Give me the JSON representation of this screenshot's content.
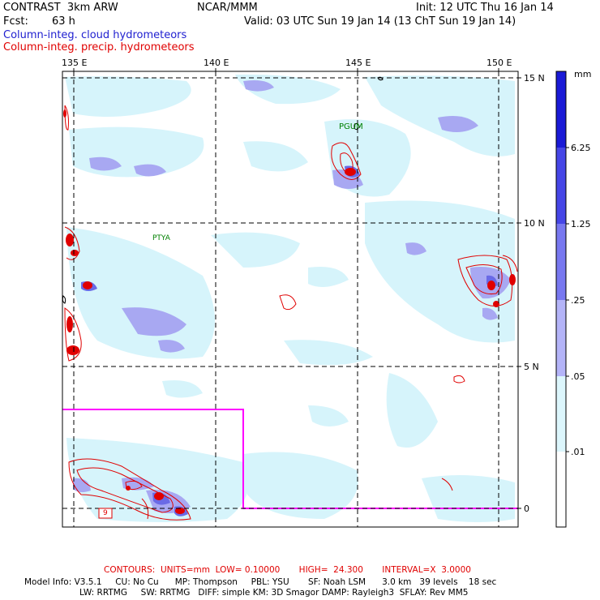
{
  "header": {
    "title": "CONTRAST  3km ARW",
    "center": "NCAR/MMM",
    "init": "Init: 12 UTC Thu 16 Jan 14",
    "fcst_label": "Fcst:",
    "fcst_value": "63 h",
    "valid": "Valid: 03 UTC Sun 19 Jan 14 (13 ChT Sun 19 Jan 14)",
    "field_blue": "Column-integ. cloud hydrometeors",
    "field_red": "Column-integ. precip. hydrometeors"
  },
  "axes": {
    "lon_labels": [
      "135 E",
      "140 E",
      "145 E",
      "150 E"
    ],
    "lat_labels": [
      "15 N",
      "10 N",
      "5 N",
      "0"
    ]
  },
  "stations": [
    "PGUM",
    "PTYA"
  ],
  "contour_label": "9",
  "colorbar": {
    "unit": "mm",
    "labels": [
      "6.25",
      "1.25",
      ".25",
      ".05",
      ".01"
    ],
    "colors": [
      "#1a1ad6",
      "#4646e6",
      "#7878f0",
      "#b4b4f8",
      "#dcf6fc",
      "#ffffff"
    ]
  },
  "colors": {
    "cloud_light": "#d6f4fb",
    "cloud_mid": "#a8a8f2",
    "cloud_dark": "#6a6ae6",
    "precip": "#e00000",
    "domain_box": "#ff00ff"
  },
  "footer": {
    "contours": "CONTOURS:  UNITS=mm  LOW= 0.10000       HIGH=  24.300       INTERVAL=X  3.0000",
    "model_line1": "Model Info: V3.5.1     CU: No Cu      MP: Thompson     PBL: YSU       SF: Noah LSM      3.0 km   39 levels    18 sec",
    "model_line2": "LW: RRTMG     SW: RRTMG   DIFF: simple KM: 3D Smagor DAMP: Rayleigh3  SFLAY: Rev MM5"
  }
}
